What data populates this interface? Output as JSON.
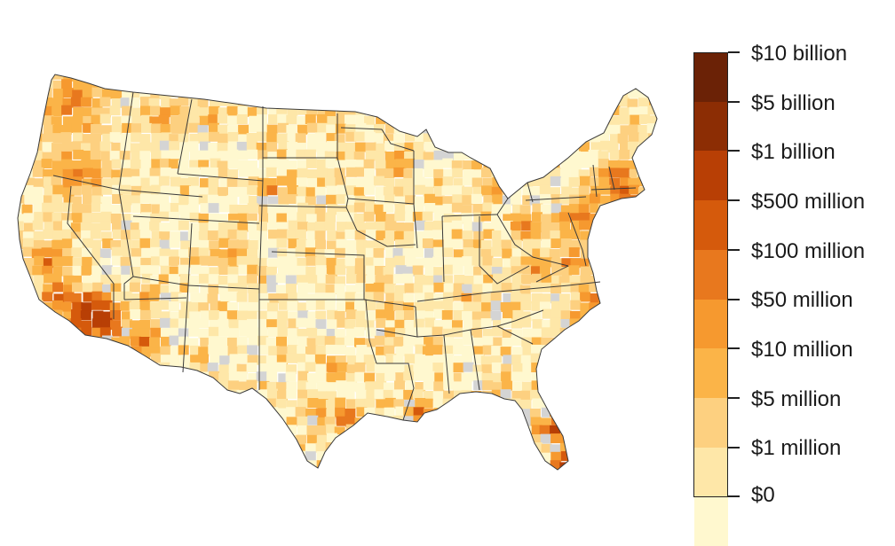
{
  "map": {
    "region": "contiguous-united-states",
    "level": "county",
    "no_data_color": "#d4d4d4",
    "border_color": "#3a3a3a"
  },
  "legend": {
    "bins": [
      {
        "label": "$10 billion",
        "color": "#6b2206"
      },
      {
        "label": "$5 billion",
        "color": "#8c2d04"
      },
      {
        "label": "$1 billion",
        "color": "#b83f05"
      },
      {
        "label": "$500 million",
        "color": "#d55a0c"
      },
      {
        "label": "$100 million",
        "color": "#e8781e"
      },
      {
        "label": "$50 million",
        "color": "#f6992f"
      },
      {
        "label": "$10 million",
        "color": "#fbb448"
      },
      {
        "label": "$5 million",
        "color": "#fdd080"
      },
      {
        "label": "$1 million",
        "color": "#fee7a8"
      },
      {
        "label": "$0",
        "color": "#fff8cf"
      }
    ]
  }
}
